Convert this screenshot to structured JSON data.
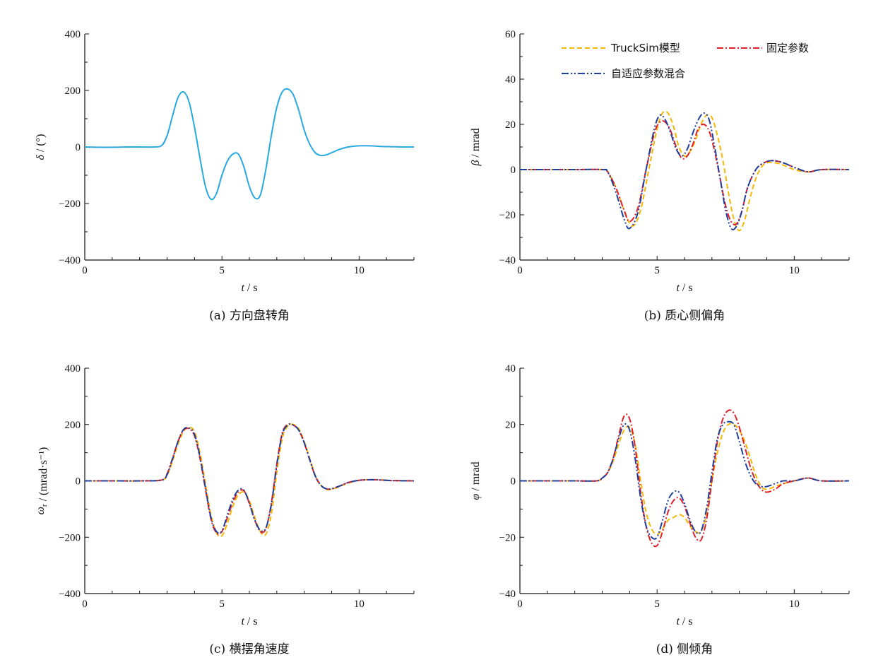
{
  "colors": {
    "steer": "#29a8e0",
    "trucksim": "#f5b700",
    "fixed": "#e0202a",
    "adaptive": "#1f3f9e",
    "axis": "#111111"
  },
  "legend": [
    {
      "key": "trucksim",
      "label": "TruckSim模型",
      "dash": "dash"
    },
    {
      "key": "fixed",
      "label": "固定参数",
      "dash": "dashdot"
    },
    {
      "key": "adaptive",
      "label": "自适应参数混合",
      "dash": "dashdotdot"
    }
  ],
  "chart_data": [
    {
      "id": "a",
      "type": "line",
      "caption": "(a)  方向盘转角",
      "xlabel": "t / s",
      "ylabel": "δ / (°)",
      "xlim": [
        0,
        12
      ],
      "ylim": [
        -400,
        400
      ],
      "xticks": [
        0,
        5,
        10
      ],
      "yticks": [
        -400,
        -200,
        0,
        200,
        400
      ],
      "grid": false,
      "series": [
        {
          "key": "steer",
          "x": [
            0,
            0.5,
            1,
            1.5,
            2,
            2.5,
            2.8,
            3.0,
            3.2,
            3.4,
            3.6,
            3.8,
            4.0,
            4.2,
            4.4,
            4.6,
            4.8,
            5.0,
            5.2,
            5.4,
            5.6,
            5.8,
            6.0,
            6.2,
            6.4,
            6.6,
            6.8,
            7.0,
            7.2,
            7.4,
            7.6,
            7.8,
            8.0,
            8.2,
            8.4,
            8.6,
            8.8,
            9.0,
            9.3,
            9.6,
            10.0,
            10.4,
            10.8,
            11.2,
            11.6,
            12
          ],
          "y": [
            0,
            -1,
            -1,
            0,
            0,
            0,
            5,
            40,
            110,
            175,
            195,
            160,
            70,
            -40,
            -140,
            -185,
            -165,
            -100,
            -50,
            -25,
            -25,
            -70,
            -140,
            -180,
            -170,
            -80,
            40,
            140,
            195,
            205,
            185,
            130,
            60,
            10,
            -20,
            -30,
            -28,
            -20,
            -8,
            0,
            4,
            4,
            2,
            1,
            0,
            0
          ]
        }
      ]
    },
    {
      "id": "b",
      "type": "line",
      "caption": "(b)  质心侧偏角",
      "xlabel": "t / s",
      "ylabel": "β / mrad",
      "xlim": [
        0,
        12
      ],
      "ylim": [
        -40,
        60
      ],
      "xticks": [
        0,
        5,
        10
      ],
      "yticks": [
        -40,
        -20,
        0,
        20,
        40,
        60
      ],
      "grid": false,
      "series": [
        {
          "key": "trucksim",
          "x": [
            0,
            1,
            2,
            3,
            3.2,
            3.5,
            3.8,
            4.1,
            4.4,
            4.7,
            5.0,
            5.2,
            5.4,
            5.6,
            5.8,
            6.0,
            6.2,
            6.4,
            6.6,
            6.8,
            7.0,
            7.2,
            7.4,
            7.6,
            7.8,
            8.0,
            8.2,
            8.4,
            8.6,
            8.8,
            9.0,
            9.3,
            9.6,
            10.0,
            10.5,
            11,
            12
          ],
          "y": [
            0,
            0,
            0,
            0,
            -1,
            -8,
            -18,
            -25,
            -18,
            0,
            18,
            25,
            25,
            19,
            10,
            6,
            8,
            13,
            20,
            24,
            23,
            15,
            4,
            -10,
            -22,
            -27,
            -22,
            -12,
            -4,
            1,
            3,
            3,
            2,
            0,
            -1,
            0,
            0
          ]
        },
        {
          "key": "fixed",
          "x": [
            0,
            1,
            2,
            3,
            3.2,
            3.5,
            3.8,
            4.0,
            4.3,
            4.6,
            4.9,
            5.1,
            5.3,
            5.5,
            5.7,
            5.9,
            6.1,
            6.3,
            6.5,
            6.7,
            6.9,
            7.1,
            7.3,
            7.5,
            7.7,
            7.9,
            8.1,
            8.3,
            8.6,
            8.9,
            9.2,
            9.6,
            10.0,
            10.5,
            11,
            12
          ],
          "y": [
            0,
            0,
            0,
            0,
            -1,
            -8,
            -18,
            -23,
            -17,
            0,
            16,
            21,
            21,
            17,
            10,
            5,
            6,
            11,
            18,
            20,
            17,
            8,
            -4,
            -16,
            -23,
            -24,
            -18,
            -8,
            0,
            3,
            4,
            3,
            1,
            -1,
            0,
            0
          ]
        },
        {
          "key": "adaptive",
          "x": [
            0,
            1,
            2,
            3,
            3.2,
            3.5,
            3.8,
            4.0,
            4.3,
            4.6,
            4.9,
            5.1,
            5.3,
            5.5,
            5.7,
            5.9,
            6.1,
            6.3,
            6.5,
            6.7,
            6.9,
            7.1,
            7.3,
            7.5,
            7.7,
            7.9,
            8.1,
            8.3,
            8.6,
            8.9,
            9.2,
            9.6,
            10.0,
            10.5,
            11,
            12
          ],
          "y": [
            0,
            0,
            0,
            0,
            -1,
            -10,
            -22,
            -26,
            -19,
            0,
            18,
            24,
            22,
            16,
            9,
            6,
            9,
            16,
            22,
            25,
            22,
            10,
            -4,
            -18,
            -26,
            -25,
            -18,
            -8,
            0,
            3,
            4,
            3,
            1,
            -1,
            0,
            0
          ]
        }
      ]
    },
    {
      "id": "c",
      "type": "line",
      "caption": "(c)  横摆角速度",
      "xlabel": "t / s",
      "ylabel": "ω_r / (mrad·s⁻¹)",
      "xlim": [
        0,
        12
      ],
      "ylim": [
        -400,
        400
      ],
      "xticks": [
        0,
        5,
        10
      ],
      "yticks": [
        -400,
        -200,
        0,
        200,
        400
      ],
      "grid": false,
      "series": [
        {
          "key": "trucksim",
          "x": [
            0,
            1,
            2,
            2.8,
            3.0,
            3.2,
            3.4,
            3.6,
            3.8,
            4.0,
            4.2,
            4.4,
            4.6,
            4.8,
            5.0,
            5.2,
            5.4,
            5.6,
            5.8,
            6.0,
            6.2,
            6.4,
            6.6,
            6.8,
            7.0,
            7.2,
            7.4,
            7.6,
            7.8,
            8.0,
            8.2,
            8.4,
            8.6,
            8.8,
            9.0,
            9.3,
            9.6,
            10.0,
            10.4,
            10.8,
            11.2,
            12
          ],
          "y": [
            0,
            0,
            0,
            3,
            20,
            70,
            130,
            175,
            190,
            175,
            100,
            -10,
            -120,
            -185,
            -195,
            -150,
            -90,
            -50,
            -40,
            -70,
            -130,
            -180,
            -190,
            -120,
            30,
            150,
            195,
            200,
            185,
            140,
            80,
            20,
            -15,
            -30,
            -30,
            -20,
            -8,
            2,
            4,
            3,
            1,
            0
          ]
        },
        {
          "key": "fixed",
          "x": [
            0,
            1,
            2,
            2.8,
            3.0,
            3.2,
            3.4,
            3.6,
            3.8,
            4.0,
            4.2,
            4.4,
            4.6,
            4.8,
            5.0,
            5.2,
            5.4,
            5.6,
            5.8,
            6.0,
            6.2,
            6.4,
            6.6,
            6.8,
            7.0,
            7.2,
            7.4,
            7.6,
            7.8,
            8.0,
            8.2,
            8.4,
            8.6,
            8.8,
            9.0,
            9.3,
            9.6,
            10.0,
            10.4,
            10.8,
            11.2,
            12
          ],
          "y": [
            0,
            0,
            0,
            3,
            25,
            80,
            140,
            180,
            185,
            160,
            80,
            -30,
            -135,
            -185,
            -180,
            -130,
            -75,
            -40,
            -35,
            -80,
            -140,
            -180,
            -170,
            -80,
            60,
            170,
            200,
            198,
            180,
            135,
            75,
            18,
            -15,
            -28,
            -28,
            -18,
            -6,
            2,
            4,
            3,
            1,
            0
          ]
        },
        {
          "key": "adaptive",
          "x": [
            0,
            1,
            2,
            2.8,
            3.0,
            3.2,
            3.4,
            3.6,
            3.8,
            4.0,
            4.2,
            4.4,
            4.6,
            4.8,
            5.0,
            5.2,
            5.4,
            5.6,
            5.8,
            6.0,
            6.2,
            6.4,
            6.6,
            6.8,
            7.0,
            7.2,
            7.4,
            7.6,
            7.8,
            8.0,
            8.2,
            8.4,
            8.6,
            8.8,
            9.0,
            9.3,
            9.6,
            10.0,
            10.4,
            10.8,
            11.2,
            12
          ],
          "y": [
            0,
            0,
            0,
            3,
            22,
            78,
            140,
            182,
            188,
            165,
            85,
            -25,
            -130,
            -180,
            -178,
            -120,
            -65,
            -33,
            -33,
            -80,
            -140,
            -175,
            -168,
            -85,
            55,
            165,
            198,
            198,
            180,
            135,
            75,
            18,
            -15,
            -28,
            -28,
            -18,
            -6,
            2,
            4,
            3,
            1,
            0
          ]
        }
      ]
    },
    {
      "id": "d",
      "type": "line",
      "caption": "(d)  侧倾角",
      "xlabel": "t / s",
      "ylabel": "φ / mrad",
      "xlim": [
        0,
        12
      ],
      "ylim": [
        -40,
        40
      ],
      "xticks": [
        0,
        5,
        10
      ],
      "yticks": [
        -40,
        -20,
        0,
        20,
        40
      ],
      "grid": false,
      "series": [
        {
          "key": "trucksim",
          "x": [
            0,
            1,
            2,
            2.8,
            3.0,
            3.2,
            3.4,
            3.6,
            3.8,
            4.0,
            4.2,
            4.4,
            4.6,
            4.8,
            5.0,
            5.2,
            5.4,
            5.6,
            5.8,
            6.0,
            6.2,
            6.4,
            6.6,
            6.8,
            7.0,
            7.2,
            7.4,
            7.6,
            7.8,
            8.0,
            8.2,
            8.4,
            8.6,
            8.8,
            9.0,
            9.3,
            9.6,
            10.0,
            10.5,
            11,
            12
          ],
          "y": [
            0,
            0,
            0,
            0,
            1,
            3,
            7,
            13,
            18,
            19,
            13,
            0,
            -11,
            -17,
            -19,
            -17,
            -14,
            -13,
            -12,
            -13,
            -16,
            -18,
            -18,
            -12,
            0,
            10,
            17,
            20,
            20,
            18,
            14,
            8,
            2,
            -2,
            -3,
            -2,
            -1,
            0,
            1,
            0,
            0
          ]
        },
        {
          "key": "fixed",
          "x": [
            0,
            1,
            2,
            2.8,
            3.0,
            3.2,
            3.4,
            3.6,
            3.8,
            4.0,
            4.2,
            4.4,
            4.6,
            4.8,
            5.0,
            5.2,
            5.4,
            5.6,
            5.8,
            6.0,
            6.2,
            6.4,
            6.6,
            6.8,
            7.0,
            7.2,
            7.4,
            7.6,
            7.8,
            8.0,
            8.2,
            8.4,
            8.6,
            8.8,
            9.0,
            9.3,
            9.6,
            10.0,
            10.5,
            11,
            12
          ],
          "y": [
            0,
            0,
            0,
            0,
            1,
            3,
            8,
            16,
            23,
            22,
            12,
            -4,
            -16,
            -22,
            -23,
            -18,
            -11,
            -7,
            -6,
            -9,
            -15,
            -20,
            -21,
            -14,
            0,
            14,
            22,
            25,
            24,
            19,
            12,
            5,
            0,
            -3,
            -4,
            -3,
            -1,
            0,
            1,
            0,
            0
          ]
        },
        {
          "key": "adaptive",
          "x": [
            0,
            1,
            2,
            2.8,
            3.0,
            3.2,
            3.4,
            3.6,
            3.8,
            4.0,
            4.2,
            4.4,
            4.6,
            4.8,
            5.0,
            5.2,
            5.4,
            5.6,
            5.8,
            6.0,
            6.2,
            6.4,
            6.6,
            6.8,
            7.0,
            7.2,
            7.4,
            7.6,
            7.8,
            8.0,
            8.2,
            8.4,
            8.6,
            8.8,
            9.0,
            9.3,
            9.6,
            10.0,
            10.5,
            11,
            12
          ],
          "y": [
            0,
            0,
            0,
            0,
            1,
            3,
            8,
            15,
            20,
            18,
            8,
            -6,
            -16,
            -20,
            -20,
            -14,
            -7,
            -4,
            -4,
            -8,
            -14,
            -18,
            -18,
            -10,
            3,
            15,
            20,
            21,
            20,
            14,
            7,
            2,
            -1,
            -2,
            -2,
            -1,
            0,
            0,
            1,
            0,
            0
          ]
        }
      ]
    }
  ]
}
